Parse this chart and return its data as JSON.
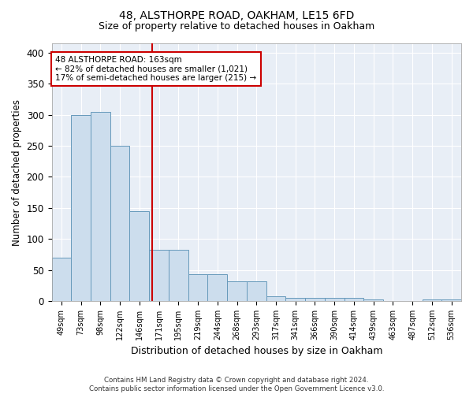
{
  "title1": "48, ALSTHORPE ROAD, OAKHAM, LE15 6FD",
  "title2": "Size of property relative to detached houses in Oakham",
  "xlabel": "Distribution of detached houses by size in Oakham",
  "ylabel": "Number of detached properties",
  "bin_labels": [
    "49sqm",
    "73sqm",
    "98sqm",
    "122sqm",
    "146sqm",
    "171sqm",
    "195sqm",
    "219sqm",
    "244sqm",
    "268sqm",
    "293sqm",
    "317sqm",
    "341sqm",
    "366sqm",
    "390sqm",
    "414sqm",
    "439sqm",
    "463sqm",
    "487sqm",
    "512sqm",
    "536sqm"
  ],
  "bar_heights": [
    70,
    300,
    305,
    250,
    145,
    83,
    83,
    43,
    43,
    32,
    32,
    8,
    5,
    5,
    5,
    5,
    2,
    0,
    0,
    3,
    3
  ],
  "bar_color": "#ccdded",
  "bar_edge_color": "#6699bb",
  "vline_x_idx": 4.65,
  "vline_color": "#cc0000",
  "annotation_text": "48 ALSTHORPE ROAD: 163sqm\n← 82% of detached houses are smaller (1,021)\n17% of semi-detached houses are larger (215) →",
  "annotation_box_color": "white",
  "annotation_box_edge": "#cc0000",
  "ylim": [
    0,
    415
  ],
  "yticks": [
    0,
    50,
    100,
    150,
    200,
    250,
    300,
    350,
    400
  ],
  "footer": "Contains HM Land Registry data © Crown copyright and database right 2024.\nContains public sector information licensed under the Open Government Licence v3.0.",
  "bg_color": "#ffffff",
  "plot_bg_color": "#e8eef6",
  "grid_color": "#ffffff",
  "title1_fontsize": 10,
  "title2_fontsize": 9,
  "ylabel_fontsize": 8.5,
  "xlabel_fontsize": 9
}
